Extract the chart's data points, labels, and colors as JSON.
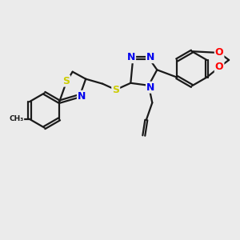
{
  "bg_color": "#ebebeb",
  "bond_color": "#1a1a1a",
  "bond_width": 1.6,
  "atom_colors": {
    "S": "#cccc00",
    "N": "#0000ee",
    "O": "#ff0000",
    "C": "#1a1a1a"
  },
  "dbo": 0.055
}
